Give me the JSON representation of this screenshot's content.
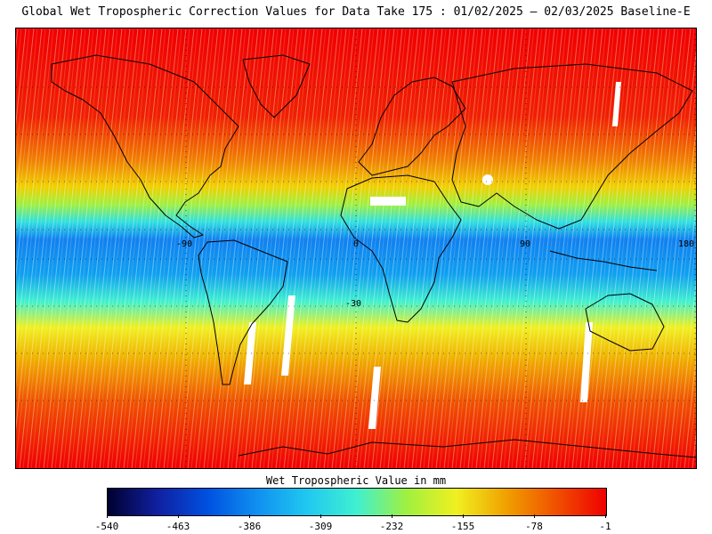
{
  "title": "Global Wet Tropospheric Correction Values for Data Take 175 : 01/02/2025 — 02/03/2025 Baseline-E",
  "map": {
    "grid_labels": {
      "lon_minus90": "-90",
      "lon_0": "0",
      "lon_90": "90",
      "lon_180": "180",
      "lat_minus30": "-30"
    },
    "colors": [
      "#000030",
      "#1020a0",
      "#0050e0",
      "#1090f0",
      "#20c8f0",
      "#40f0d0",
      "#a0f040",
      "#f0f020",
      "#f0a000",
      "#f05000",
      "#f00000"
    ]
  },
  "colorbar": {
    "title": "Wet Tropospheric Value in mm",
    "ticks": [
      "-540",
      "-463",
      "-386",
      "-309",
      "-232",
      "-155",
      "-78",
      "-1"
    ]
  }
}
